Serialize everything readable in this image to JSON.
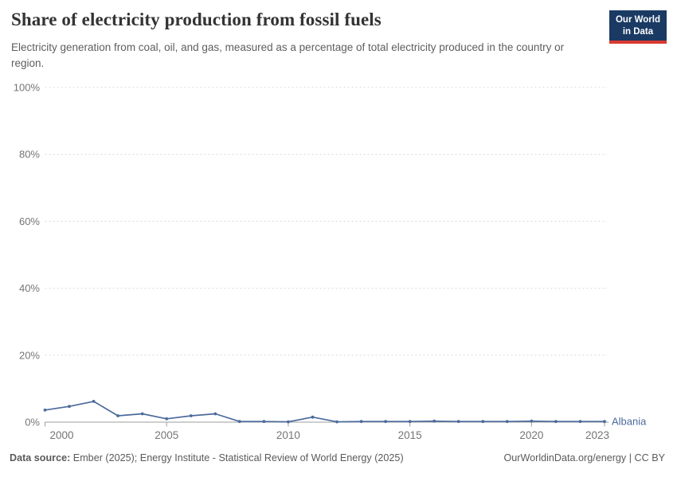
{
  "header": {
    "title": "Share of electricity production from fossil fuels",
    "subtitle": "Electricity generation from coal, oil, and gas, measured as a percentage of total electricity produced in the country or region.",
    "logo": {
      "line1": "Our World",
      "line2": "in Data"
    }
  },
  "theme": {
    "series_blue": "#4c6a9c",
    "logo_bg": "#1a3a63",
    "logo_red": "#d93a32",
    "grid_color": "#dadada",
    "axis_color": "#9e9e9e",
    "tick_label_color": "#757575"
  },
  "chart_data": {
    "type": "line",
    "title": "Share of electricity production from fossil fuels",
    "xlabel": "",
    "ylabel": "",
    "xlim": [
      2000,
      2023
    ],
    "ylim": [
      0,
      100
    ],
    "xticks": [
      2000,
      2005,
      2010,
      2015,
      2020,
      2023
    ],
    "yticks": [
      0,
      20,
      40,
      60,
      80,
      100
    ],
    "ytick_suffix": "%",
    "grid": "horizontal-dashed",
    "legend_position": "end-of-line-label",
    "markers": true,
    "x": [
      2000,
      2001,
      2002,
      2003,
      2004,
      2005,
      2006,
      2007,
      2008,
      2009,
      2010,
      2011,
      2012,
      2013,
      2014,
      2015,
      2016,
      2017,
      2018,
      2019,
      2020,
      2021,
      2022,
      2023
    ],
    "series": [
      {
        "name": "Albania",
        "color": "#4c6a9c",
        "values": [
          3.6,
          4.7,
          6.2,
          1.9,
          2.5,
          1.0,
          1.9,
          2.5,
          0.2,
          0.2,
          0.1,
          1.5,
          0.1,
          0.2,
          0.2,
          0.2,
          0.3,
          0.2,
          0.2,
          0.2,
          0.3,
          0.2,
          0.2,
          0.2
        ]
      }
    ]
  },
  "footer": {
    "source_label": "Data source:",
    "source_text": " Ember (2025); Energy Institute - Statistical Review of World Energy (2025)",
    "right_text": "OurWorldinData.org/energy | CC BY"
  }
}
